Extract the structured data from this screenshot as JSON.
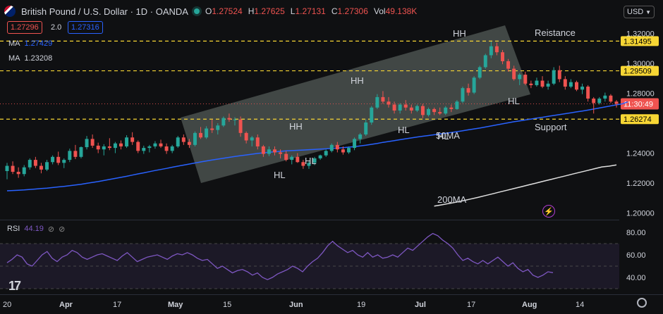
{
  "header": {
    "symbol": "British Pound / U.S. Dollar · 1D · OANDA",
    "ohlc": [
      {
        "key": "O",
        "value": "1.27524"
      },
      {
        "key": "H",
        "value": "1.27625"
      },
      {
        "key": "L",
        "value": "1.27131"
      },
      {
        "key": "C",
        "value": "1.27306"
      },
      {
        "key": "Vol",
        "value": "49.138K"
      }
    ],
    "bid": "1.27296",
    "spread": "2.0",
    "ask": "1.27316",
    "currency": "USD",
    "ma1_label": "MA",
    "ma1_value": "1.27429",
    "ma2_label": "MA",
    "ma2_value": "1.23208"
  },
  "colors": {
    "up": "#26a69a",
    "down": "#ef5350",
    "ma50": "#2962ff",
    "ma200": "#e0e0e0",
    "rsi": "#7e57c2",
    "level_line": "#f7d634",
    "channel": "#6b7570"
  },
  "rsi": {
    "label": "RSI",
    "value": "44.19",
    "ticks": [
      "80.00",
      "60.00",
      "40.00"
    ]
  },
  "chart_data": {
    "type": "candlestick",
    "title": "British Pound / U.S. Dollar · 1D · OANDA",
    "ylim": [
      1.1955,
      1.3255
    ],
    "y_ticks": [
      "1.32000",
      "1.30000",
      "1.28000",
      "1.24000",
      "1.22000",
      "1.20000"
    ],
    "x_ticks": [
      "20",
      "Apr",
      "17",
      "May",
      "15",
      "Jun",
      "19",
      "Jul",
      "17",
      "Aug",
      "14"
    ],
    "levels": [
      {
        "value": "1.31495",
        "label": "Reistance"
      },
      {
        "value": "1.29509",
        "label": ""
      },
      {
        "value": "1.26274",
        "label": "Support"
      }
    ],
    "current_price": "1.27296",
    "countdown": "11:30:49",
    "annotations": [
      "HH",
      "HH",
      "HH",
      "HH",
      "HL",
      "HL",
      "HL",
      "HL",
      "50MA",
      "200MA",
      "Reistance",
      "Support"
    ],
    "candles": [
      {
        "o": 1.228,
        "h": 1.2335,
        "l": 1.2225,
        "c": 1.2315
      },
      {
        "o": 1.2315,
        "h": 1.2345,
        "l": 1.226,
        "c": 1.2275
      },
      {
        "o": 1.2275,
        "h": 1.2305,
        "l": 1.2235,
        "c": 1.226
      },
      {
        "o": 1.226,
        "h": 1.232,
        "l": 1.2245,
        "c": 1.2305
      },
      {
        "o": 1.2305,
        "h": 1.2365,
        "l": 1.229,
        "c": 1.2355
      },
      {
        "o": 1.2355,
        "h": 1.2375,
        "l": 1.23,
        "c": 1.2315
      },
      {
        "o": 1.2315,
        "h": 1.2335,
        "l": 1.2265,
        "c": 1.229
      },
      {
        "o": 1.229,
        "h": 1.2355,
        "l": 1.228,
        "c": 1.234
      },
      {
        "o": 1.234,
        "h": 1.2385,
        "l": 1.2325,
        "c": 1.2375
      },
      {
        "o": 1.2375,
        "h": 1.241,
        "l": 1.232,
        "c": 1.2335
      },
      {
        "o": 1.2335,
        "h": 1.2365,
        "l": 1.23,
        "c": 1.2355
      },
      {
        "o": 1.2355,
        "h": 1.243,
        "l": 1.234,
        "c": 1.2415
      },
      {
        "o": 1.2415,
        "h": 1.2455,
        "l": 1.236,
        "c": 1.2375
      },
      {
        "o": 1.2375,
        "h": 1.2445,
        "l": 1.2365,
        "c": 1.244
      },
      {
        "o": 1.244,
        "h": 1.2515,
        "l": 1.2425,
        "c": 1.2495
      },
      {
        "o": 1.2495,
        "h": 1.2525,
        "l": 1.2435,
        "c": 1.245
      },
      {
        "o": 1.245,
        "h": 1.247,
        "l": 1.24,
        "c": 1.2425
      },
      {
        "o": 1.2425,
        "h": 1.246,
        "l": 1.2385,
        "c": 1.2445
      },
      {
        "o": 1.2445,
        "h": 1.25,
        "l": 1.242,
        "c": 1.2435
      },
      {
        "o": 1.2435,
        "h": 1.2475,
        "l": 1.24,
        "c": 1.2465
      },
      {
        "o": 1.2465,
        "h": 1.2485,
        "l": 1.2425,
        "c": 1.2445
      },
      {
        "o": 1.2445,
        "h": 1.252,
        "l": 1.2435,
        "c": 1.2505
      },
      {
        "o": 1.2505,
        "h": 1.254,
        "l": 1.2455,
        "c": 1.2475
      },
      {
        "o": 1.2475,
        "h": 1.2485,
        "l": 1.24,
        "c": 1.2415
      },
      {
        "o": 1.2415,
        "h": 1.245,
        "l": 1.2395,
        "c": 1.2435
      },
      {
        "o": 1.2435,
        "h": 1.2455,
        "l": 1.2405,
        "c": 1.2445
      },
      {
        "o": 1.2445,
        "h": 1.248,
        "l": 1.243,
        "c": 1.2465
      },
      {
        "o": 1.2465,
        "h": 1.249,
        "l": 1.2435,
        "c": 1.2445
      },
      {
        "o": 1.2445,
        "h": 1.2465,
        "l": 1.2395,
        "c": 1.2415
      },
      {
        "o": 1.2415,
        "h": 1.2455,
        "l": 1.24,
        "c": 1.2445
      },
      {
        "o": 1.2445,
        "h": 1.2515,
        "l": 1.2435,
        "c": 1.2505
      },
      {
        "o": 1.2505,
        "h": 1.2525,
        "l": 1.2455,
        "c": 1.2475
      },
      {
        "o": 1.2475,
        "h": 1.2495,
        "l": 1.2435,
        "c": 1.2455
      },
      {
        "o": 1.2455,
        "h": 1.2545,
        "l": 1.2445,
        "c": 1.2535
      },
      {
        "o": 1.2535,
        "h": 1.2575,
        "l": 1.2495,
        "c": 1.2505
      },
      {
        "o": 1.2505,
        "h": 1.258,
        "l": 1.2495,
        "c": 1.2565
      },
      {
        "o": 1.2565,
        "h": 1.2625,
        "l": 1.2535,
        "c": 1.2555
      },
      {
        "o": 1.2555,
        "h": 1.26,
        "l": 1.2525,
        "c": 1.2585
      },
      {
        "o": 1.2585,
        "h": 1.2645,
        "l": 1.2575,
        "c": 1.2635
      },
      {
        "o": 1.2635,
        "h": 1.2665,
        "l": 1.261,
        "c": 1.2625
      },
      {
        "o": 1.2625,
        "h": 1.264,
        "l": 1.2585,
        "c": 1.2625
      },
      {
        "o": 1.2625,
        "h": 1.2645,
        "l": 1.251,
        "c": 1.2535
      },
      {
        "o": 1.2535,
        "h": 1.2545,
        "l": 1.2465,
        "c": 1.2485
      },
      {
        "o": 1.2485,
        "h": 1.2515,
        "l": 1.2445,
        "c": 1.2505
      },
      {
        "o": 1.2505,
        "h": 1.2525,
        "l": 1.2425,
        "c": 1.2445
      },
      {
        "o": 1.2445,
        "h": 1.2455,
        "l": 1.2375,
        "c": 1.2395
      },
      {
        "o": 1.2395,
        "h": 1.2445,
        "l": 1.238,
        "c": 1.2425
      },
      {
        "o": 1.2425,
        "h": 1.2445,
        "l": 1.2385,
        "c": 1.2405
      },
      {
        "o": 1.2405,
        "h": 1.2425,
        "l": 1.2365,
        "c": 1.2395
      },
      {
        "o": 1.2395,
        "h": 1.2415,
        "l": 1.2345,
        "c": 1.2355
      },
      {
        "o": 1.2355,
        "h": 1.2385,
        "l": 1.2325,
        "c": 1.2375
      },
      {
        "o": 1.2375,
        "h": 1.24,
        "l": 1.2335,
        "c": 1.234
      },
      {
        "o": 1.234,
        "h": 1.2355,
        "l": 1.2295,
        "c": 1.2315
      },
      {
        "o": 1.2315,
        "h": 1.2345,
        "l": 1.2295,
        "c": 1.2335
      },
      {
        "o": 1.2335,
        "h": 1.2375,
        "l": 1.232,
        "c": 1.2365
      },
      {
        "o": 1.2365,
        "h": 1.239,
        "l": 1.2355,
        "c": 1.2385
      },
      {
        "o": 1.2385,
        "h": 1.2425,
        "l": 1.2375,
        "c": 1.2415
      },
      {
        "o": 1.2415,
        "h": 1.2465,
        "l": 1.2405,
        "c": 1.2455
      },
      {
        "o": 1.2455,
        "h": 1.2475,
        "l": 1.2405,
        "c": 1.2425
      },
      {
        "o": 1.2425,
        "h": 1.2445,
        "l": 1.239,
        "c": 1.2405
      },
      {
        "o": 1.2405,
        "h": 1.2445,
        "l": 1.2395,
        "c": 1.2435
      },
      {
        "o": 1.2435,
        "h": 1.2505,
        "l": 1.242,
        "c": 1.2495
      },
      {
        "o": 1.2495,
        "h": 1.2535,
        "l": 1.2465,
        "c": 1.2525
      },
      {
        "o": 1.2525,
        "h": 1.2625,
        "l": 1.2515,
        "c": 1.2605
      },
      {
        "o": 1.2605,
        "h": 1.2715,
        "l": 1.259,
        "c": 1.2705
      },
      {
        "o": 1.2705,
        "h": 1.2795,
        "l": 1.2695,
        "c": 1.2775
      },
      {
        "o": 1.2775,
        "h": 1.2815,
        "l": 1.273,
        "c": 1.2745
      },
      {
        "o": 1.2745,
        "h": 1.2775,
        "l": 1.2705,
        "c": 1.2725
      },
      {
        "o": 1.2725,
        "h": 1.2745,
        "l": 1.2665,
        "c": 1.2685
      },
      {
        "o": 1.2685,
        "h": 1.2735,
        "l": 1.2665,
        "c": 1.2725
      },
      {
        "o": 1.2725,
        "h": 1.2755,
        "l": 1.2685,
        "c": 1.2705
      },
      {
        "o": 1.2705,
        "h": 1.2725,
        "l": 1.2665,
        "c": 1.2685
      },
      {
        "o": 1.2685,
        "h": 1.2725,
        "l": 1.2675,
        "c": 1.2715
      },
      {
        "o": 1.2715,
        "h": 1.273,
        "l": 1.2635,
        "c": 1.2655
      },
      {
        "o": 1.2655,
        "h": 1.2705,
        "l": 1.2645,
        "c": 1.2695
      },
      {
        "o": 1.2695,
        "h": 1.2705,
        "l": 1.2655,
        "c": 1.2675
      },
      {
        "o": 1.2675,
        "h": 1.2705,
        "l": 1.2655,
        "c": 1.2665
      },
      {
        "o": 1.2665,
        "h": 1.2715,
        "l": 1.2655,
        "c": 1.2705
      },
      {
        "o": 1.2705,
        "h": 1.2725,
        "l": 1.2675,
        "c": 1.2695
      },
      {
        "o": 1.2695,
        "h": 1.2755,
        "l": 1.269,
        "c": 1.2745
      },
      {
        "o": 1.2745,
        "h": 1.2845,
        "l": 1.2735,
        "c": 1.2835
      },
      {
        "o": 1.2835,
        "h": 1.2865,
        "l": 1.2785,
        "c": 1.2805
      },
      {
        "o": 1.2805,
        "h": 1.2915,
        "l": 1.2795,
        "c": 1.2905
      },
      {
        "o": 1.2905,
        "h": 1.2985,
        "l": 1.2895,
        "c": 1.2975
      },
      {
        "o": 1.2975,
        "h": 1.3065,
        "l": 1.2965,
        "c": 1.3055
      },
      {
        "o": 1.3055,
        "h": 1.3145,
        "l": 1.3035,
        "c": 1.3115
      },
      {
        "o": 1.3115,
        "h": 1.314,
        "l": 1.3055,
        "c": 1.3075
      },
      {
        "o": 1.3075,
        "h": 1.309,
        "l": 1.2995,
        "c": 1.3015
      },
      {
        "o": 1.3015,
        "h": 1.303,
        "l": 1.2945,
        "c": 1.2965
      },
      {
        "o": 1.2965,
        "h": 1.2985,
        "l": 1.2885,
        "c": 1.2895
      },
      {
        "o": 1.2895,
        "h": 1.2935,
        "l": 1.2855,
        "c": 1.2925
      },
      {
        "o": 1.2925,
        "h": 1.2945,
        "l": 1.2855,
        "c": 1.2865
      },
      {
        "o": 1.2865,
        "h": 1.2885,
        "l": 1.2835,
        "c": 1.2855
      },
      {
        "o": 1.2855,
        "h": 1.2905,
        "l": 1.2845,
        "c": 1.2885
      },
      {
        "o": 1.2885,
        "h": 1.2915,
        "l": 1.2835,
        "c": 1.2845
      },
      {
        "o": 1.2845,
        "h": 1.2885,
        "l": 1.2825,
        "c": 1.2865
      },
      {
        "o": 1.2865,
        "h": 1.2975,
        "l": 1.2855,
        "c": 1.2955
      },
      {
        "o": 1.2955,
        "h": 1.2985,
        "l": 1.2875,
        "c": 1.2895
      },
      {
        "o": 1.2895,
        "h": 1.2915,
        "l": 1.2825,
        "c": 1.2845
      },
      {
        "o": 1.2845,
        "h": 1.2895,
        "l": 1.2835,
        "c": 1.2875
      },
      {
        "o": 1.2875,
        "h": 1.2885,
        "l": 1.2815,
        "c": 1.2825
      },
      {
        "o": 1.2825,
        "h": 1.2865,
        "l": 1.2795,
        "c": 1.2845
      },
      {
        "o": 1.2845,
        "h": 1.2855,
        "l": 1.2745,
        "c": 1.2765
      },
      {
        "o": 1.2765,
        "h": 1.2775,
        "l": 1.2665,
        "c": 1.2735
      },
      {
        "o": 1.2735,
        "h": 1.2775,
        "l": 1.2725,
        "c": 1.2765
      },
      {
        "o": 1.2765,
        "h": 1.2805,
        "l": 1.2745,
        "c": 1.2785
      },
      {
        "o": 1.2785,
        "h": 1.2795,
        "l": 1.2735,
        "c": 1.2745
      },
      {
        "o": 1.2745,
        "h": 1.2755,
        "l": 1.2705,
        "c": 1.273
      }
    ],
    "series": [
      {
        "name": "MA",
        "values": [
          1.2148,
          1.215,
          1.2152,
          1.2154,
          1.2157,
          1.216,
          1.2163,
          1.2166,
          1.217,
          1.2174,
          1.2178,
          1.2182,
          1.2187,
          1.2192,
          1.2198,
          1.2204,
          1.221,
          1.2217,
          1.2224,
          1.2231,
          1.2238,
          1.2245,
          1.2253,
          1.2261,
          1.2268,
          1.2276,
          1.2284,
          1.2291,
          1.2298,
          1.2306,
          1.2313,
          1.232,
          1.2327,
          1.2334,
          1.2341,
          1.2348,
          1.2354,
          1.236,
          1.2366,
          1.2372,
          1.2378,
          1.2383,
          1.2388,
          1.2393,
          1.2398,
          1.2402,
          1.2406,
          1.2409,
          1.2412,
          1.2415,
          1.2417,
          1.2419,
          1.2421,
          1.2423,
          1.2425,
          1.2427,
          1.2429,
          1.2431,
          1.2434,
          1.2437,
          1.244,
          1.2444,
          1.2448,
          1.2453,
          1.2459,
          1.2465,
          1.2472,
          1.2478,
          1.2484,
          1.249,
          1.2496,
          1.2502,
          1.2508,
          1.2513,
          1.2518,
          1.2523,
          1.2528,
          1.2533,
          1.2538,
          1.2544,
          1.255,
          1.2556,
          1.2562,
          1.2568,
          1.2575,
          1.2582,
          1.2589,
          1.2596,
          1.2603,
          1.261,
          1.2616,
          1.2622,
          1.2628,
          1.2634,
          1.264,
          1.2646,
          1.2652,
          1.2658,
          1.2664,
          1.267,
          1.2676,
          1.2682,
          1.2688,
          1.2695,
          1.2702,
          1.2709,
          1.2716,
          1.2723,
          1.273,
          1.2743
        ]
      },
      {
        "name": "MA",
        "values": [
          1.2046,
          1.2054,
          1.2063,
          1.2072,
          1.2082,
          1.2093,
          1.2104,
          1.2116,
          1.2128,
          1.214,
          1.2152,
          1.2164,
          1.2176,
          1.2188,
          1.22,
          1.2212,
          1.2224,
          1.2236,
          1.2248,
          1.226,
          1.2272,
          1.2284,
          1.2296,
          1.2308,
          1.2313,
          1.2321
        ]
      }
    ],
    "rsi_values": [
      53,
      56,
      60,
      58,
      52,
      50,
      55,
      60,
      63,
      57,
      54,
      58,
      60,
      64,
      62,
      58,
      56,
      58,
      60,
      61,
      59,
      57,
      55,
      59,
      62,
      58,
      54,
      56,
      58,
      59,
      60,
      58,
      56,
      59,
      61,
      60,
      62,
      60,
      57,
      55,
      56,
      52,
      48,
      50,
      47,
      44,
      46,
      47,
      45,
      42,
      44,
      40,
      38,
      40,
      43,
      45,
      47,
      50,
      48,
      45,
      50,
      54,
      57,
      62,
      68,
      72,
      68,
      65,
      62,
      64,
      60,
      58,
      62,
      58,
      60,
      57,
      58,
      60,
      58,
      62,
      66,
      64,
      68,
      72,
      76,
      79,
      77,
      73,
      70,
      66,
      60,
      55,
      57,
      54,
      52,
      55,
      52,
      55,
      58,
      54,
      50,
      53,
      48,
      45,
      47,
      42,
      40,
      42,
      45,
      44.19
    ]
  }
}
